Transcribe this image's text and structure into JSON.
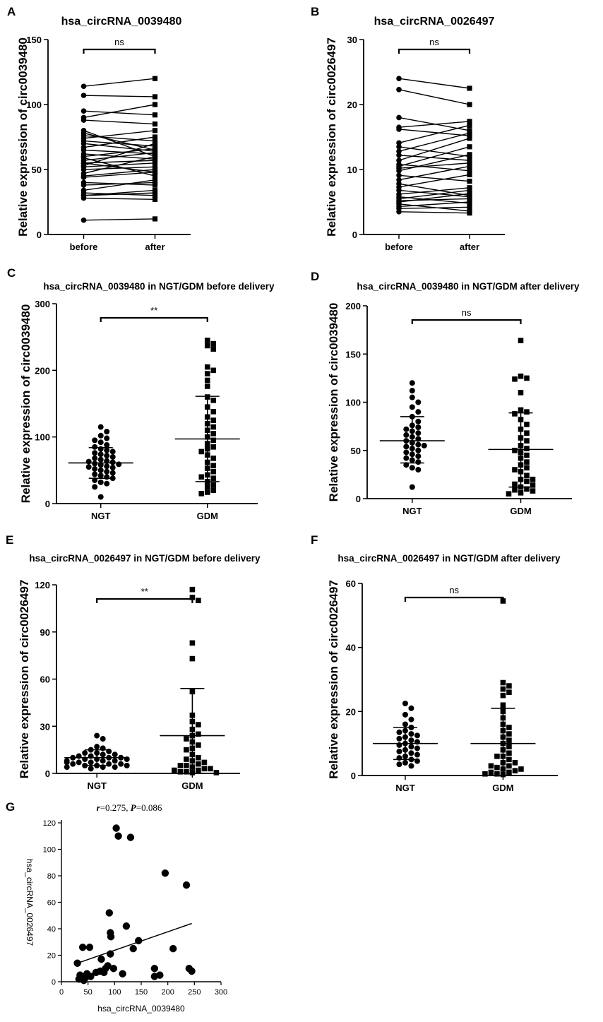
{
  "colors": {
    "ink": "#000000",
    "background": "#ffffff"
  },
  "chart_data": [
    {
      "id": "A",
      "panel_label": "A",
      "type": "paired",
      "title": "hsa_circRNA_0039480",
      "ylabel": "Relative expression of circ0039480",
      "categories": [
        "before",
        "after"
      ],
      "ylim": [
        0,
        150
      ],
      "yticks": [
        0,
        50,
        100,
        150
      ],
      "significance": "ns",
      "pairs": [
        [
          11,
          12
        ],
        [
          28,
          27
        ],
        [
          30,
          32
        ],
        [
          30,
          34
        ],
        [
          32,
          30
        ],
        [
          34,
          42
        ],
        [
          38,
          40
        ],
        [
          40,
          38
        ],
        [
          44,
          48
        ],
        [
          45,
          50
        ],
        [
          47,
          60
        ],
        [
          50,
          52
        ],
        [
          52,
          55
        ],
        [
          53,
          70
        ],
        [
          55,
          57
        ],
        [
          55,
          48
        ],
        [
          57,
          63
        ],
        [
          59,
          45
        ],
        [
          60,
          66
        ],
        [
          62,
          58
        ],
        [
          65,
          62
        ],
        [
          67,
          75
        ],
        [
          70,
          64
        ],
        [
          72,
          68
        ],
        [
          74,
          80
        ],
        [
          76,
          72
        ],
        [
          78,
          65
        ],
        [
          80,
          60
        ],
        [
          88,
          85
        ],
        [
          90,
          100
        ],
        [
          95,
          92
        ],
        [
          107,
          106
        ],
        [
          114,
          120
        ]
      ]
    },
    {
      "id": "B",
      "panel_label": "B",
      "type": "paired",
      "title": "hsa_circRNA_0026497",
      "ylabel": "Relative expression of circ0026497",
      "categories": [
        "before",
        "after"
      ],
      "ylim": [
        0,
        30
      ],
      "yticks": [
        0,
        10,
        20,
        30
      ],
      "significance": "ns",
      "pairs": [
        [
          3.5,
          3.3
        ],
        [
          4.0,
          4.2
        ],
        [
          4.3,
          5.0
        ],
        [
          4.7,
          3.6
        ],
        [
          5.0,
          6.3
        ],
        [
          5.2,
          5.5
        ],
        [
          5.5,
          6.8
        ],
        [
          5.8,
          4.8
        ],
        [
          6.2,
          7.2
        ],
        [
          6.8,
          5.8
        ],
        [
          7.3,
          9.2
        ],
        [
          7.8,
          6.0
        ],
        [
          8.4,
          10.5
        ],
        [
          9.1,
          8.2
        ],
        [
          9.8,
          12.3
        ],
        [
          10.2,
          11.0
        ],
        [
          10.5,
          13.5
        ],
        [
          10.8,
          9.8
        ],
        [
          11.4,
          14.8
        ],
        [
          12.2,
          11.4
        ],
        [
          12.8,
          15.6
        ],
        [
          13.5,
          12.0
        ],
        [
          14.1,
          16.8
        ],
        [
          16.2,
          15.2
        ],
        [
          16.5,
          17.4
        ],
        [
          18.0,
          16.0
        ],
        [
          22.3,
          20.0
        ],
        [
          24.0,
          22.5
        ]
      ]
    },
    {
      "id": "C",
      "panel_label": "C",
      "type": "scatter_dot",
      "title": "hsa_circRNA_0039480 in NGT/GDM before delivery",
      "ylabel": "Relative expression of circ0039480",
      "categories": [
        "NGT",
        "GDM"
      ],
      "ylim": [
        0,
        300
      ],
      "yticks": [
        0,
        100,
        200,
        300
      ],
      "significance": "**",
      "groups": [
        {
          "name": "NGT",
          "marker": "circle",
          "mean": 61,
          "sd_low": 38,
          "sd_high": 84,
          "values": [
            115,
            108,
            102,
            98,
            95,
            92,
            88,
            85,
            82,
            80,
            78,
            76,
            74,
            72,
            70,
            68,
            66,
            64,
            63,
            62,
            60,
            59,
            58,
            56,
            55,
            54,
            52,
            50,
            48,
            46,
            44,
            42,
            40,
            38,
            35,
            32,
            30,
            25,
            10
          ]
        },
        {
          "name": "GDM",
          "marker": "square",
          "mean": 97,
          "sd_low": 33,
          "sd_high": 161,
          "values": [
            245,
            240,
            237,
            232,
            205,
            200,
            195,
            185,
            176,
            160,
            155,
            145,
            138,
            130,
            125,
            120,
            115,
            110,
            105,
            100,
            95,
            90,
            85,
            82,
            78,
            73,
            68,
            62,
            57,
            53,
            48,
            43,
            38,
            33,
            28,
            25,
            20,
            17,
            15,
            40
          ]
        }
      ]
    },
    {
      "id": "D",
      "panel_label": "D",
      "type": "scatter_dot",
      "title": "hsa_circRNA_0039480 in NGT/GDM after delivery",
      "ylabel": "Relative expression of circ0039480",
      "categories": [
        "NGT",
        "GDM"
      ],
      "ylim": [
        0,
        200
      ],
      "yticks": [
        0,
        50,
        100,
        150,
        200
      ],
      "significance": "ns",
      "groups": [
        {
          "name": "NGT",
          "marker": "circle",
          "mean": 60,
          "sd_low": 37,
          "sd_high": 85,
          "values": [
            120,
            112,
            105,
            100,
            95,
            90,
            85,
            80,
            76,
            74,
            72,
            70,
            68,
            66,
            64,
            62,
            60,
            58,
            56,
            55,
            54,
            52,
            50,
            48,
            46,
            44,
            42,
            40,
            38,
            35,
            32,
            30,
            12
          ]
        },
        {
          "name": "GDM",
          "marker": "square",
          "mean": 51,
          "sd_low": 12,
          "sd_high": 89,
          "values": [
            164,
            127,
            125,
            124,
            110,
            92,
            90,
            88,
            82,
            77,
            72,
            68,
            63,
            60,
            55,
            52,
            50,
            48,
            45,
            42,
            38,
            35,
            32,
            30,
            28,
            24,
            20,
            18,
            15,
            12,
            10,
            9,
            8,
            6,
            5,
            20,
            14
          ]
        }
      ]
    },
    {
      "id": "E",
      "panel_label": "E",
      "type": "scatter_dot",
      "title": "hsa_circRNA_0026497 in NGT/GDM before delivery",
      "ylabel": "Relative expression of circ0026497",
      "categories": [
        "NGT",
        "GDM"
      ],
      "ylim": [
        0,
        120
      ],
      "yticks": [
        0,
        30,
        60,
        90,
        120
      ],
      "significance": "**",
      "groups": [
        {
          "name": "NGT",
          "marker": "circle",
          "mean": 10,
          "sd_low": 5,
          "sd_high": 15,
          "values": [
            24,
            22,
            17,
            16,
            15,
            14,
            13,
            13,
            12,
            12,
            11,
            11,
            10,
            10,
            10,
            9,
            9,
            9,
            8,
            8,
            8,
            7,
            7,
            7,
            6,
            6,
            6,
            5,
            5,
            5,
            4,
            4,
            4,
            3
          ]
        },
        {
          "name": "GDM",
          "marker": "square",
          "mean": 24,
          "sd_low": 0,
          "sd_high": 54,
          "values": [
            117,
            112,
            110,
            83,
            73,
            52,
            37,
            33,
            31,
            28,
            25,
            24,
            22,
            20,
            18,
            16,
            15,
            12,
            10,
            8,
            6,
            5,
            4,
            3,
            2,
            1,
            0.5,
            9,
            7,
            5,
            3,
            2,
            1,
            0.5
          ]
        }
      ]
    },
    {
      "id": "F",
      "panel_label": "F",
      "type": "scatter_dot",
      "title": "hsa_circRNA_0026497 in NGT/GDM after delivery",
      "ylabel": "Relative expression of circ0026497",
      "categories": [
        "NGT",
        "GDM"
      ],
      "ylim": [
        0,
        60
      ],
      "yticks": [
        0,
        20,
        40,
        60
      ],
      "significance": "ns",
      "groups": [
        {
          "name": "NGT",
          "marker": "circle",
          "mean": 10,
          "sd_low": 5,
          "sd_high": 15,
          "values": [
            22.5,
            21,
            19,
            17.5,
            16,
            15,
            14,
            13.5,
            13,
            12.5,
            12,
            11.5,
            11,
            10.5,
            10,
            9.5,
            9,
            8.5,
            8,
            7.5,
            7,
            6.5,
            6,
            5.5,
            5,
            4.5,
            4,
            3.5,
            3
          ]
        },
        {
          "name": "GDM",
          "marker": "square",
          "mean": 10,
          "sd_low": 0,
          "sd_high": 21,
          "values": [
            54.5,
            29,
            28,
            27,
            26,
            25,
            22,
            20,
            18,
            16,
            15,
            14,
            13,
            12,
            11,
            10,
            9,
            8,
            7,
            6,
            5,
            4,
            3,
            2.5,
            2,
            1.5,
            1,
            0.5,
            0.3,
            6,
            4,
            3,
            2,
            1,
            0.5
          ]
        }
      ]
    },
    {
      "id": "G",
      "panel_label": "G",
      "type": "scatter",
      "title": "r =0.275, P=0.086",
      "r_label": "r",
      "r_value": "=0.275, ",
      "p_label": "P",
      "p_value": "=0.086",
      "xlabel": "hsa_circRNA_0039480",
      "ylabel": "hsa_circRNA_0026497",
      "xlim": [
        0,
        300
      ],
      "xticks": [
        0,
        50,
        100,
        150,
        200,
        250,
        300
      ],
      "ylim": [
        0,
        120
      ],
      "yticks": [
        0,
        20,
        40,
        60,
        80,
        100,
        120
      ],
      "regression": [
        [
          30,
          14
        ],
        [
          245,
          44
        ]
      ],
      "points": [
        [
          103,
          116
        ],
        [
          107,
          110
        ],
        [
          130,
          109
        ],
        [
          235,
          73
        ],
        [
          195,
          82
        ],
        [
          90,
          52
        ],
        [
          122,
          42
        ],
        [
          92,
          37
        ],
        [
          93,
          34
        ],
        [
          145,
          31
        ],
        [
          40,
          26
        ],
        [
          53,
          26
        ],
        [
          210,
          25
        ],
        [
          135,
          25
        ],
        [
          92,
          21
        ],
        [
          75,
          17
        ],
        [
          30,
          14
        ],
        [
          87,
          12
        ],
        [
          83,
          10
        ],
        [
          98,
          10
        ],
        [
          240,
          10
        ],
        [
          175,
          10
        ],
        [
          245,
          8
        ],
        [
          65,
          7
        ],
        [
          73,
          8
        ],
        [
          80,
          7
        ],
        [
          115,
          6
        ],
        [
          35,
          5
        ],
        [
          48,
          6
        ],
        [
          185,
          5
        ],
        [
          175,
          4
        ],
        [
          38,
          3
        ],
        [
          45,
          3
        ],
        [
          55,
          4
        ],
        [
          33,
          2
        ],
        [
          42,
          1
        ]
      ]
    }
  ]
}
